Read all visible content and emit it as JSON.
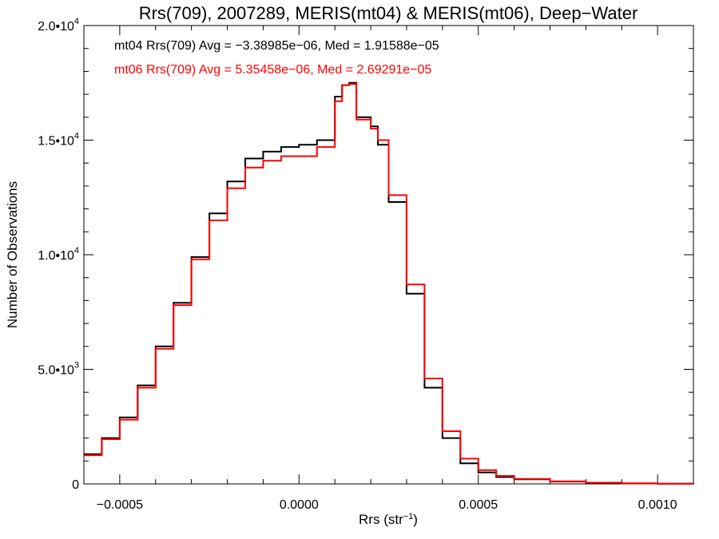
{
  "chart_data": {
    "type": "line",
    "title": "Rrs(709), 2007289, MERIS(mt04) & MERIS(mt06), Deep−Water",
    "xlabel": "Rrs (str",
    "xlabel_sup": "−1",
    "xlabel_close": ")",
    "ylabel": "Number of Observations",
    "xlim": [
      -0.0006,
      0.0011
    ],
    "ylim": [
      0,
      20000
    ],
    "grid": false,
    "x_ticks": [
      {
        "value": -0.0005,
        "label": "−0.0005"
      },
      {
        "value": 0.0,
        "label": "0.0000"
      },
      {
        "value": 0.0005,
        "label": "0.0005"
      },
      {
        "value": 0.001,
        "label": "0.0010"
      }
    ],
    "y_ticks": [
      {
        "value": 0,
        "label": "0",
        "sup": ""
      },
      {
        "value": 5000,
        "label": "5.0•10",
        "sup": "3"
      },
      {
        "value": 10000,
        "label": "1.0•10",
        "sup": "4"
      },
      {
        "value": 15000,
        "label": "1.5•10",
        "sup": "4"
      },
      {
        "value": 20000,
        "label": "2.0•10",
        "sup": "4"
      }
    ],
    "legend_position": "top-left",
    "x": [
      -0.0006,
      -0.00055,
      -0.0005,
      -0.00045,
      -0.0004,
      -0.00035,
      -0.0003,
      -0.00025,
      -0.0002,
      -0.00015,
      -0.0001,
      -5e-05,
      0.0,
      5e-05,
      0.0001,
      0.00012,
      0.00014,
      0.00016,
      0.0002,
      0.00022,
      0.00025,
      0.0003,
      0.00035,
      0.0004,
      0.00045,
      0.0005,
      0.00055,
      0.0006,
      0.0007,
      0.0008,
      0.0009,
      0.001,
      0.0011
    ],
    "series": [
      {
        "name": "mt04 Rrs(709)",
        "color": "#000000",
        "legend": "mt04 Rrs(709) Avg = −3.38985e−06, Med = 1.91588e−05",
        "values": [
          1300,
          2000,
          2900,
          4300,
          6000,
          7900,
          9900,
          11800,
          13200,
          14200,
          14500,
          14700,
          14800,
          15000,
          16900,
          17400,
          17500,
          16000,
          15600,
          14800,
          12300,
          8300,
          4200,
          2000,
          900,
          500,
          300,
          200,
          100,
          50,
          20,
          10,
          5
        ]
      },
      {
        "name": "mt06 Rrs(709)",
        "color": "#ff0000",
        "legend": "mt06 Rrs(709) Avg = 5.35458e−06, Med = 2.69291e−05",
        "values": [
          1250,
          1950,
          2800,
          4200,
          5900,
          7800,
          9800,
          11500,
          12900,
          13800,
          14100,
          14300,
          14300,
          14700,
          16700,
          17400,
          17450,
          15900,
          15500,
          15000,
          12600,
          8700,
          4600,
          2300,
          1100,
          600,
          350,
          220,
          110,
          55,
          25,
          12,
          6
        ]
      }
    ]
  }
}
